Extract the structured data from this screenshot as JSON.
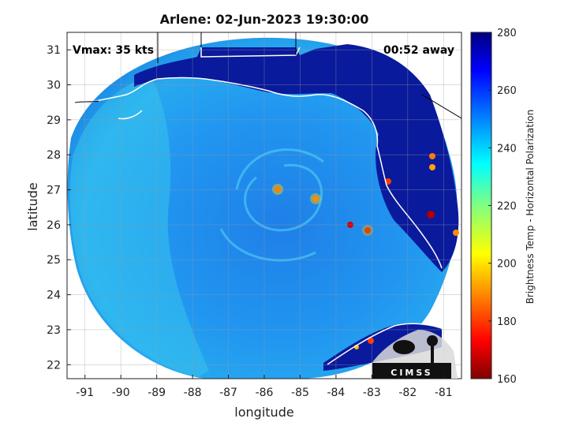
{
  "title": "Arlene: 02-Jun-2023 19:30:00",
  "vmax_label": "Vmax: 35 kts",
  "away_label": "00:52 away",
  "xlabel": "longitude",
  "ylabel": "latitude",
  "colorbar": {
    "label": "Brightness Temp - Horizontal Polarization",
    "range": [
      160,
      280
    ],
    "ticks": [
      "160",
      "180",
      "200",
      "220",
      "240",
      "260",
      "280"
    ],
    "colormap": "jet"
  },
  "logo_text": "CIMSS",
  "chart_data": {
    "type": "heatmap",
    "title": "Arlene: 02-Jun-2023 19:30:00",
    "xlabel": "longitude",
    "ylabel": "latitude",
    "xlim": [
      -91.5,
      -80.5
    ],
    "ylim": [
      21.6,
      31.5
    ],
    "x_ticks": [
      "-91",
      "-90",
      "-89",
      "-88",
      "-87",
      "-86",
      "-85",
      "-84",
      "-83",
      "-82",
      "-81"
    ],
    "y_ticks": [
      "22",
      "23",
      "24",
      "25",
      "26",
      "27",
      "28",
      "29",
      "30",
      "31"
    ],
    "grid": true,
    "value_range": [
      160,
      280
    ],
    "vmax_kts": 35,
    "time_away": "00:52"
  }
}
